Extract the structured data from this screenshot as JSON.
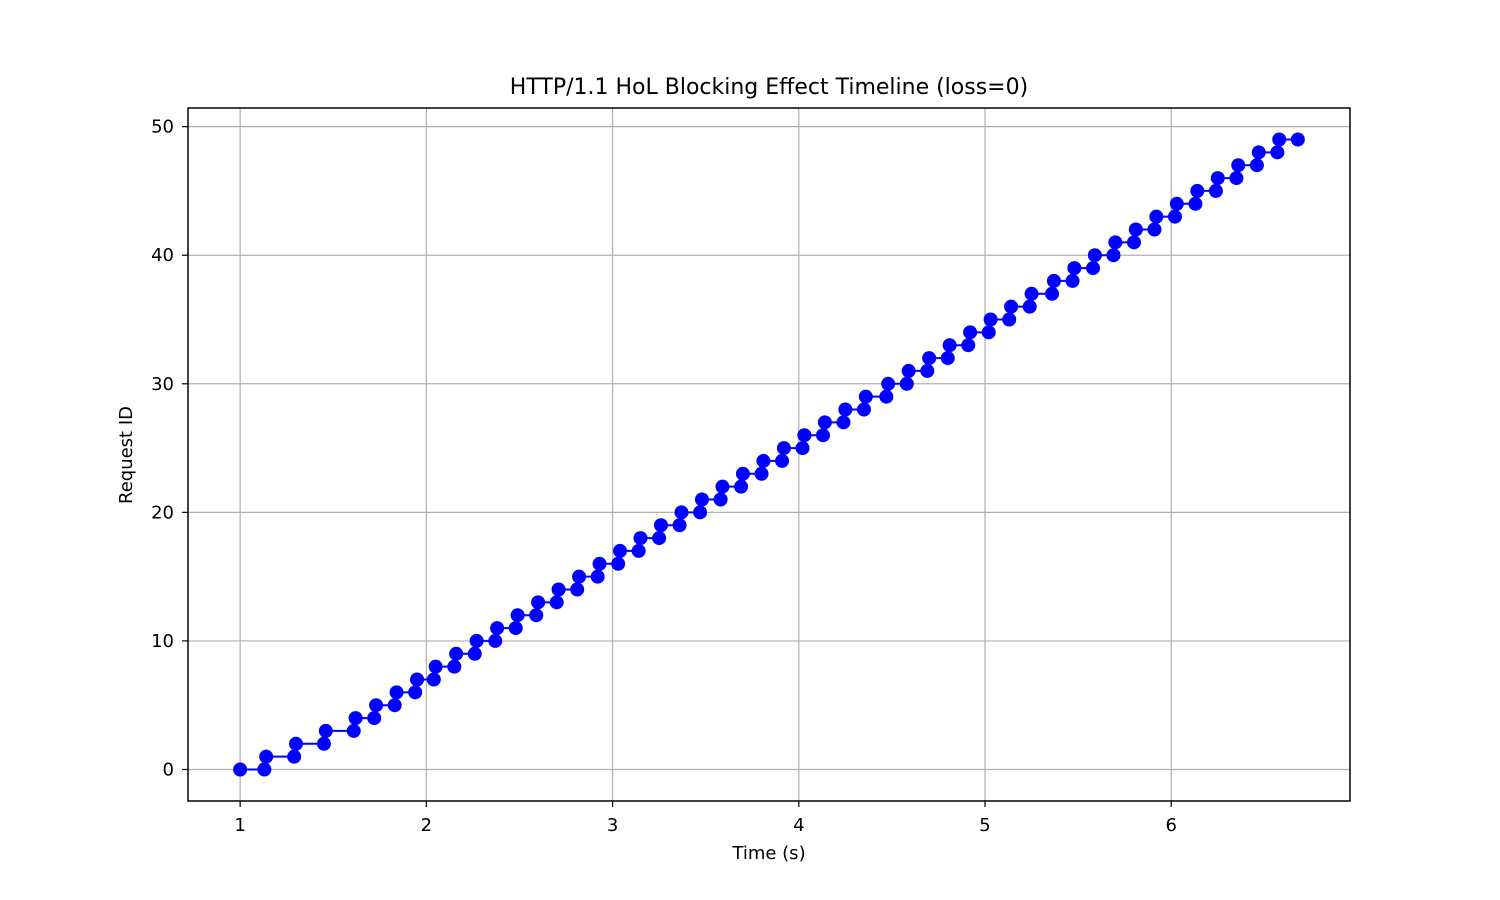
{
  "chart_data": {
    "type": "line",
    "title": "HTTP/1.1 HoL Blocking Effect Timeline (loss=0)",
    "xlabel": "Time (s)",
    "ylabel": "Request ID",
    "xlim": [
      0.72,
      6.96
    ],
    "ylim": [
      -2.45,
      51.45
    ],
    "xticks": [
      1,
      2,
      3,
      4,
      5,
      6
    ],
    "yticks": [
      0,
      10,
      20,
      30,
      40,
      50
    ],
    "grid": true,
    "legend": "none",
    "series": [
      {
        "color": "#0000ff",
        "marker": "circle",
        "x": [
          1.0,
          1.13,
          1.14,
          1.29,
          1.3,
          1.45,
          1.46,
          1.61,
          1.62,
          1.72,
          1.73,
          1.83,
          1.84,
          1.94,
          1.95,
          2.04,
          2.05,
          2.15,
          2.16,
          2.26,
          2.27,
          2.37,
          2.38,
          2.48,
          2.49,
          2.59,
          2.6,
          2.7,
          2.71,
          2.81,
          2.82,
          2.92,
          2.93,
          3.03,
          3.04,
          3.14,
          3.15,
          3.25,
          3.26,
          3.36,
          3.37,
          3.47,
          3.48,
          3.58,
          3.59,
          3.69,
          3.7,
          3.8,
          3.81,
          3.91,
          3.92,
          4.02,
          4.03,
          4.13,
          4.14,
          4.24,
          4.25,
          4.35,
          4.36,
          4.47,
          4.48,
          4.58,
          4.59,
          4.69,
          4.7,
          4.8,
          4.81,
          4.91,
          4.92,
          5.02,
          5.03,
          5.13,
          5.14,
          5.24,
          5.25,
          5.36,
          5.37,
          5.47,
          5.48,
          5.58,
          5.59,
          5.69,
          5.7,
          5.8,
          5.81,
          5.91,
          5.92,
          6.02,
          6.03,
          6.13,
          6.14,
          6.24,
          6.25,
          6.35,
          6.36,
          6.46,
          6.47,
          6.57,
          6.58,
          6.68
        ],
        "y": [
          0,
          0,
          1,
          1,
          2,
          2,
          3,
          3,
          4,
          4,
          5,
          5,
          6,
          6,
          7,
          7,
          8,
          8,
          9,
          9,
          10,
          10,
          11,
          11,
          12,
          12,
          13,
          13,
          14,
          14,
          15,
          15,
          16,
          16,
          17,
          17,
          18,
          18,
          19,
          19,
          20,
          20,
          21,
          21,
          22,
          22,
          23,
          23,
          24,
          24,
          25,
          25,
          26,
          26,
          27,
          27,
          28,
          28,
          29,
          29,
          30,
          30,
          31,
          31,
          32,
          32,
          33,
          33,
          34,
          34,
          35,
          35,
          36,
          36,
          37,
          37,
          38,
          38,
          39,
          39,
          40,
          40,
          41,
          41,
          42,
          42,
          43,
          43,
          44,
          44,
          45,
          45,
          46,
          46,
          47,
          47,
          48,
          48,
          49,
          49
        ]
      }
    ]
  }
}
